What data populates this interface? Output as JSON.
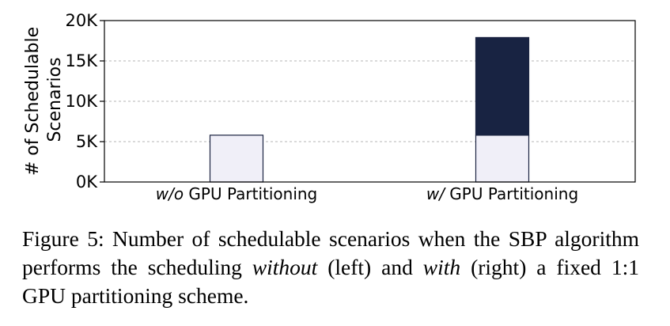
{
  "chart_data": {
    "type": "bar",
    "stacked": true,
    "categories_display": [
      {
        "italic": "w/o",
        "rest": " GPU Partitioning"
      },
      {
        "italic": "w/",
        "rest": " GPU Partitioning"
      }
    ],
    "series": [
      {
        "values": [
          5800,
          5800
        ],
        "color": "#f0eff8"
      },
      {
        "values": [
          0,
          12100
        ],
        "color": "#182342"
      }
    ],
    "ylabel_lines": [
      "# of Schedulable",
      "Scenarios"
    ],
    "yticks": [
      0,
      5000,
      10000,
      15000,
      20000
    ],
    "ytick_labels": [
      "0K",
      "5K",
      "10K",
      "15K",
      "20K"
    ],
    "ylim": [
      0,
      20000
    ],
    "grid": "horizontal-dashed",
    "legend": "none"
  },
  "caption": {
    "part1": "Figure 5: Number of schedulable scenarios when the SBP algorithm performs the scheduling ",
    "em1": "without",
    "part2": " (left) and ",
    "em2": "with",
    "part3": " (right) a fixed 1:1 GPU partitioning scheme."
  }
}
